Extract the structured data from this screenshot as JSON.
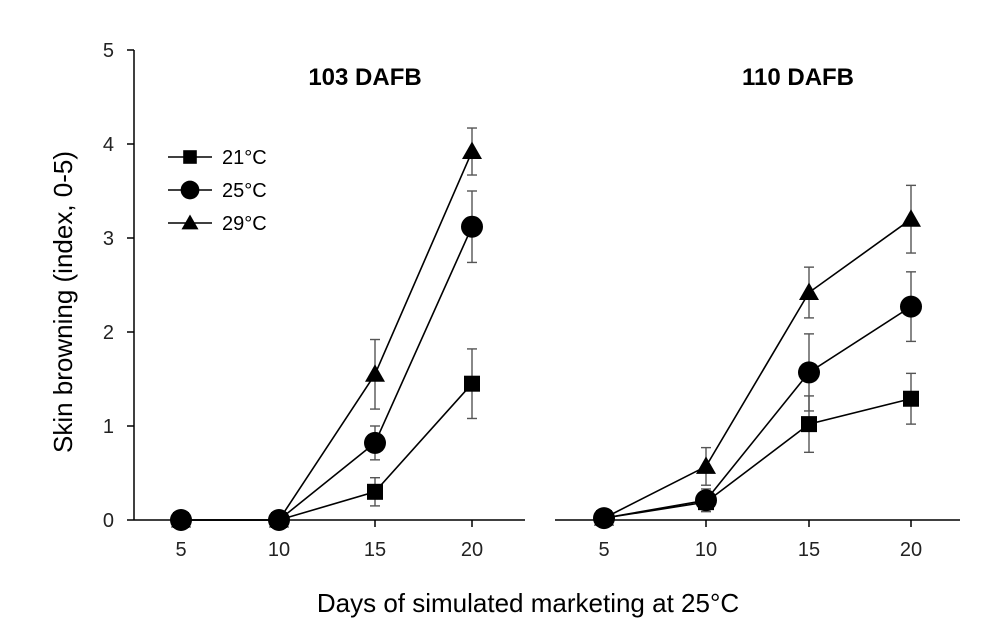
{
  "chart_data": {
    "type": "line",
    "y_axis": {
      "label": "Skin browning (index, 0-5)",
      "ylim": [
        0,
        5
      ],
      "ticks": [
        "0",
        "1",
        "2",
        "3",
        "4",
        "5"
      ]
    },
    "x_axis": {
      "label": "Days of simulated marketing at 25°C",
      "categories": [
        "5",
        "10",
        "15",
        "20"
      ]
    },
    "legend": {
      "placement": "top-left",
      "entries": [
        {
          "name": "21°C",
          "marker": "square"
        },
        {
          "name": "25°C",
          "marker": "circle"
        },
        {
          "name": "29°C",
          "marker": "triangle"
        }
      ]
    },
    "panels": [
      {
        "title": "103 DAFB",
        "series": [
          {
            "name": "21°C",
            "marker": "square",
            "values": [
              0,
              0,
              0.3,
              1.45
            ],
            "errors": [
              0,
              0,
              0.15,
              0.37
            ]
          },
          {
            "name": "25°C",
            "marker": "circle",
            "values": [
              0,
              0,
              0.82,
              3.12
            ],
            "errors": [
              0,
              0,
              0.18,
              0.38
            ]
          },
          {
            "name": "29°C",
            "marker": "triangle",
            "values": [
              0,
              0,
              1.55,
              3.92
            ],
            "errors": [
              0,
              0,
              0.37,
              0.25
            ]
          }
        ]
      },
      {
        "title": "110 DAFB",
        "series": [
          {
            "name": "21°C",
            "marker": "square",
            "values": [
              0.02,
              0.19,
              1.02,
              1.29
            ],
            "errors": [
              0,
              0.1,
              0.3,
              0.27
            ]
          },
          {
            "name": "25°C",
            "marker": "circle",
            "values": [
              0.02,
              0.21,
              1.57,
              2.27
            ],
            "errors": [
              0,
              0.12,
              0.41,
              0.37
            ]
          },
          {
            "name": "29°C",
            "marker": "triangle",
            "values": [
              0.02,
              0.57,
              2.42,
              3.2
            ],
            "errors": [
              0,
              0.2,
              0.27,
              0.36
            ]
          }
        ]
      }
    ]
  }
}
